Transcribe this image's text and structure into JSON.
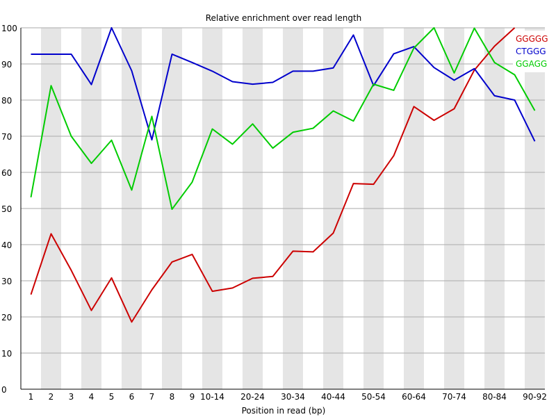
{
  "chart_data": {
    "type": "line",
    "title": "Relative enrichment over read length",
    "xlabel": "Position in read (bp)",
    "ylabel": "",
    "ylim": [
      0,
      100
    ],
    "yticks": [
      0,
      10,
      20,
      30,
      40,
      50,
      60,
      70,
      80,
      90,
      100
    ],
    "grid": true,
    "legend_position": "top-right",
    "categories": [
      "1",
      "2",
      "3",
      "4",
      "5",
      "6",
      "7",
      "8",
      "9",
      "10-14",
      "15-19",
      "20-24",
      "25-29",
      "30-34",
      "35-39",
      "40-44",
      "45-49",
      "50-54",
      "55-59",
      "60-64",
      "65-69",
      "70-74",
      "75-79",
      "80-84",
      "85-89",
      "90-92"
    ],
    "shown_tick_labels": [
      "1",
      "2",
      "3",
      "4",
      "5",
      "6",
      "7",
      "8",
      "9",
      "10-14",
      "20-24",
      "30-34",
      "40-44",
      "50-54",
      "60-64",
      "70-74",
      "80-84",
      "90-92"
    ],
    "series": [
      {
        "name": "GGGGG",
        "color": "#cc0000",
        "values": [
          26.2,
          43.0,
          32.9,
          21.8,
          30.8,
          18.6,
          27.5,
          35.2,
          37.3,
          27.1,
          28.0,
          30.7,
          31.2,
          38.2,
          38.0,
          43.2,
          56.9,
          56.7,
          64.6,
          78.2,
          74.4,
          77.6,
          88.3,
          94.9,
          100.0,
          null
        ]
      },
      {
        "name": "CTGGG",
        "color": "#0000cc",
        "values": [
          92.7,
          92.7,
          92.7,
          84.3,
          100.0,
          88.1,
          69.0,
          92.7,
          90.4,
          88.0,
          85.1,
          84.4,
          84.9,
          88.0,
          88.0,
          88.9,
          98.0,
          84.0,
          92.8,
          94.8,
          89.0,
          85.5,
          88.7,
          81.2,
          80.0,
          68.6
        ]
      },
      {
        "name": "GGAGG",
        "color": "#00cc00",
        "values": [
          53.1,
          84.0,
          70.0,
          62.5,
          68.9,
          55.1,
          75.5,
          49.8,
          57.3,
          72.0,
          67.8,
          73.4,
          66.7,
          71.1,
          72.2,
          77.0,
          74.2,
          84.4,
          82.7,
          94.4,
          100.0,
          87.5,
          99.9,
          90.4,
          87.0,
          77.1
        ]
      }
    ]
  }
}
